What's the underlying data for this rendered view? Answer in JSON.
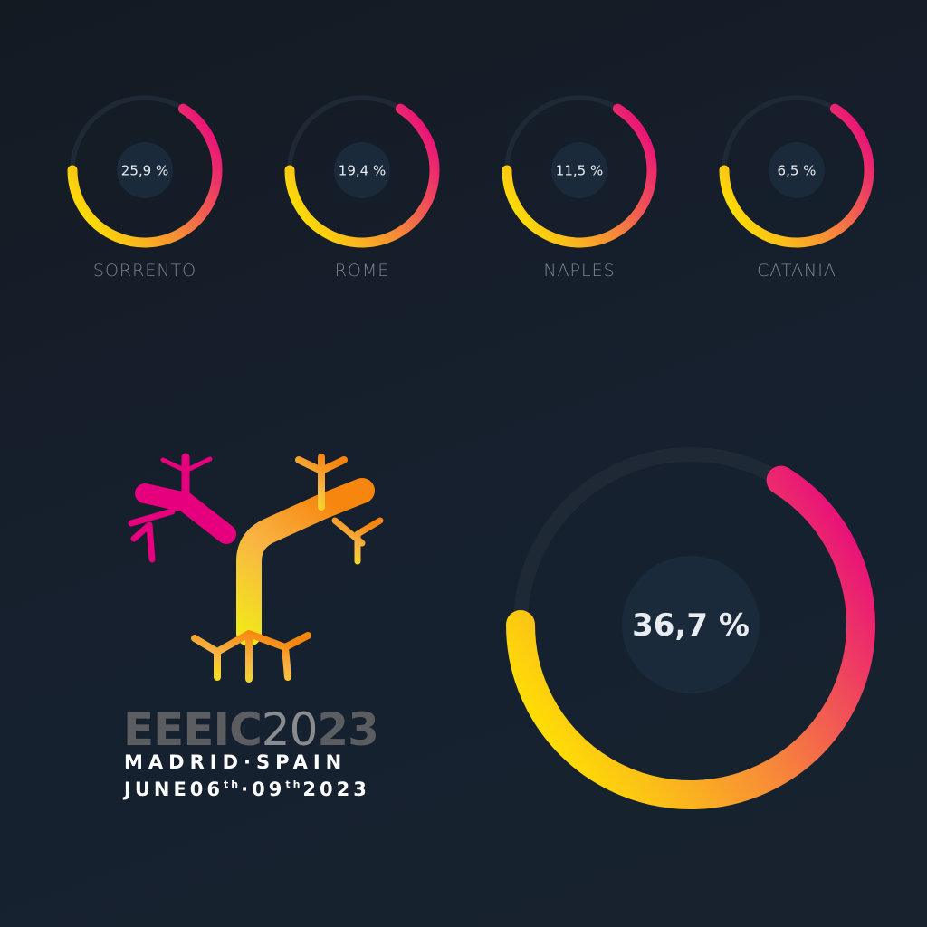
{
  "chart_data": {
    "type": "pie",
    "style": "radial gauge",
    "categories": [
      "SORRENTO",
      "ROME",
      "NAPLES",
      "CATANIA"
    ],
    "values": [
      25.9,
      19.4,
      11.5,
      6.5
    ],
    "labels": [
      "25,9 %",
      "19,4 %",
      "11,5 %",
      "6,5 %"
    ],
    "highlight": {
      "value": 36.7,
      "label": "36,7 %"
    },
    "gradient_colors": [
      "#ffe600",
      "#f7873a",
      "#e8107a"
    ],
    "track_color": "#1e2935",
    "center_color": "#1a2a3a"
  },
  "logo": {
    "title_bold": "EEEIC",
    "title_thin": "20",
    "title_bold2": "23",
    "location": "MADRID·SPAIN",
    "date_month": "JUNE06",
    "date_th1": "th",
    "date_sep": "·09",
    "date_th2": "th",
    "date_year": "2023",
    "colors": [
      "#e6007e",
      "#f7941d",
      "#f2e61b"
    ]
  }
}
